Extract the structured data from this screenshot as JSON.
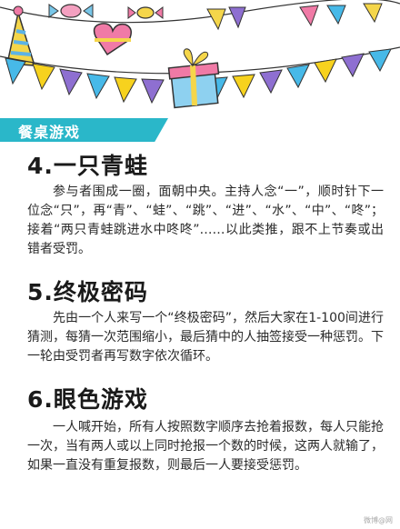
{
  "category": "餐桌游戏",
  "sections": [
    {
      "title": "4.一只青蛙",
      "body": "参与者围成一圈，面朝中央。主持人念“一”，顺时针下一位念“只”，再“青”、“蛙”、“跳”、“进”、“水”、“中”、“咚”；接着“两只青蛙跳进水中咚咚”……以此类推，跟不上节奏或出错者受罚。"
    },
    {
      "title": "5.终极密码",
      "body": "先由一个人来写一个“终极密码”，然后大家在1-100间进行猜测，每猜一次范围缩小，最后猜中的人抽签接受一种惩罚。下一轮由受罚者再写数字依次循环。"
    },
    {
      "title": "6.眼色游戏",
      "body": "一人喊开始，所有人按照数字顺序去抢着报数，每人只能抢一次，当有两人或以上同时抢报一个数的时候，这两人就输了，如果一直没有重复报数，则最后一人要接受惩罚。"
    }
  ],
  "watermark": "微博@网",
  "colors": {
    "banner": "#2ab7c9",
    "flag_yellow": "#f7d21e",
    "flag_purple": "#8e6fd1",
    "flag_blue": "#47b9e8",
    "gift_pink": "#f07aa6",
    "hat_yellow": "#f5d64a"
  }
}
